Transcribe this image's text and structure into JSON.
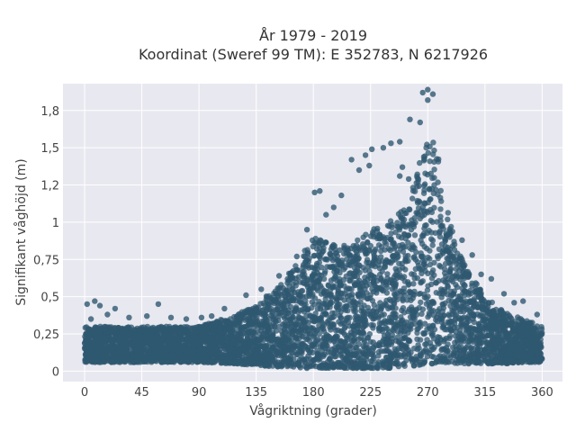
{
  "chart_data": {
    "type": "scatter",
    "title_lines": [
      "År 1979 - 2019",
      "Koordinat (Sweref 99 TM): E 352783, N 6217926"
    ],
    "xlabel": "Vågriktning (grader)",
    "ylabel": "Signifikant våghöjd (m)",
    "xlim": [
      -17,
      376
    ],
    "ylim": [
      -0.07,
      1.93
    ],
    "x_ticks": [
      0,
      45,
      90,
      135,
      180,
      225,
      270,
      315,
      360
    ],
    "x_tick_labels": [
      "0",
      "45",
      "90",
      "135",
      "180",
      "225",
      "270",
      "315",
      "360"
    ],
    "y_ticks": [
      0,
      0.25,
      0.5,
      0.75,
      1,
      1.25,
      1.5,
      1.75
    ],
    "y_tick_labels": [
      "0",
      "0,25",
      "0,5",
      "0,75",
      "1",
      "1,2",
      "1,5",
      "1,8"
    ],
    "grid": true,
    "marker_color": "#2f5870",
    "background_color": "#e8e8f0",
    "envelope": {
      "direction": [
        0,
        20,
        45,
        90,
        120,
        135,
        150,
        165,
        180,
        195,
        210,
        225,
        240,
        255,
        262,
        270,
        278,
        285,
        292,
        300,
        315,
        330,
        345,
        360
      ],
      "upper_height": [
        0.3,
        0.3,
        0.3,
        0.3,
        0.38,
        0.45,
        0.55,
        0.7,
        0.9,
        0.85,
        0.85,
        0.95,
        1.0,
        1.15,
        1.35,
        1.6,
        1.5,
        1.1,
        0.85,
        0.7,
        0.5,
        0.4,
        0.35,
        0.3
      ],
      "lower_height": [
        0.06,
        0.06,
        0.06,
        0.06,
        0.05,
        0.04,
        0.03,
        0.02,
        0.02,
        0.02,
        0.02,
        0.02,
        0.02,
        0.03,
        0.04,
        0.05,
        0.05,
        0.05,
        0.05,
        0.05,
        0.05,
        0.05,
        0.06,
        0.06
      ]
    },
    "extreme_points": [
      {
        "x": 270,
        "y": 1.89
      },
      {
        "x": 266,
        "y": 1.87
      },
      {
        "x": 274,
        "y": 1.86
      },
      {
        "x": 270,
        "y": 1.82
      },
      {
        "x": 256,
        "y": 1.69
      },
      {
        "x": 264,
        "y": 1.67
      },
      {
        "x": 241,
        "y": 1.53
      },
      {
        "x": 248,
        "y": 1.54
      },
      {
        "x": 226,
        "y": 1.49
      },
      {
        "x": 235,
        "y": 1.5
      },
      {
        "x": 221,
        "y": 1.45
      },
      {
        "x": 224,
        "y": 1.38
      },
      {
        "x": 216,
        "y": 1.35
      },
      {
        "x": 210,
        "y": 1.42
      },
      {
        "x": 181,
        "y": 1.2
      },
      {
        "x": 185,
        "y": 1.21
      },
      {
        "x": 196,
        "y": 1.1
      },
      {
        "x": 202,
        "y": 1.18
      },
      {
        "x": 248,
        "y": 1.31
      },
      {
        "x": 250,
        "y": 1.37
      },
      {
        "x": 255,
        "y": 1.29
      },
      {
        "x": 320,
        "y": 0.62
      },
      {
        "x": 330,
        "y": 0.52
      },
      {
        "x": 345,
        "y": 0.47
      },
      {
        "x": 2,
        "y": 0.45
      },
      {
        "x": 8,
        "y": 0.47
      },
      {
        "x": 12,
        "y": 0.44
      },
      {
        "x": 24,
        "y": 0.42
      },
      {
        "x": 58,
        "y": 0.45
      },
      {
        "x": 92,
        "y": 0.36
      },
      {
        "x": 110,
        "y": 0.42
      },
      {
        "x": 127,
        "y": 0.51
      },
      {
        "x": 139,
        "y": 0.55
      },
      {
        "x": 153,
        "y": 0.64
      },
      {
        "x": 167,
        "y": 0.77
      },
      {
        "x": 175,
        "y": 0.95
      },
      {
        "x": 190,
        "y": 1.05
      },
      {
        "x": 297,
        "y": 0.88
      },
      {
        "x": 305,
        "y": 0.78
      },
      {
        "x": 312,
        "y": 0.65
      },
      {
        "x": 338,
        "y": 0.46
      },
      {
        "x": 356,
        "y": 0.38
      },
      {
        "x": 5,
        "y": 0.35
      },
      {
        "x": 18,
        "y": 0.38
      },
      {
        "x": 35,
        "y": 0.36
      },
      {
        "x": 49,
        "y": 0.37
      },
      {
        "x": 68,
        "y": 0.36
      },
      {
        "x": 80,
        "y": 0.35
      },
      {
        "x": 100,
        "y": 0.37
      }
    ]
  }
}
